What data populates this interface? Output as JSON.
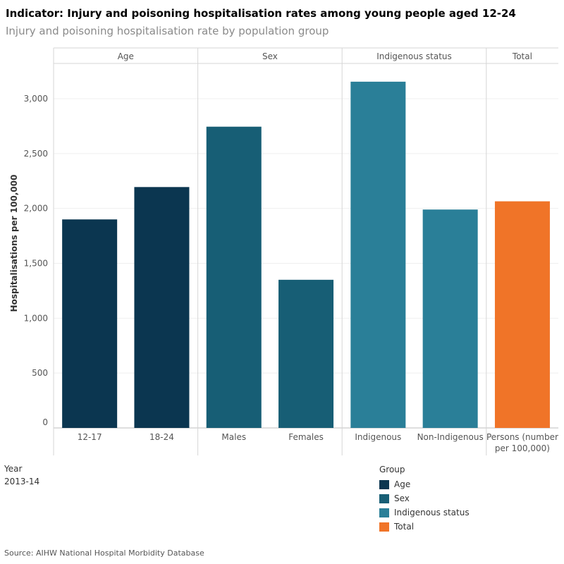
{
  "header": {
    "title": "Indicator: Injury and poisoning hospitalisation rates among young people aged 12-24",
    "subtitle": "Injury and poisoning hospitalisation rate by population group"
  },
  "filters": {
    "year_label": "Year",
    "year_value": "2013-14"
  },
  "legend": {
    "title": "Group",
    "items": [
      {
        "label": "Age",
        "color": "#0b3650"
      },
      {
        "label": "Sex",
        "color": "#175e75"
      },
      {
        "label": "Indigenous status",
        "color": "#2a7f98"
      },
      {
        "label": "Total",
        "color": "#f07428"
      }
    ]
  },
  "source": "Source: AIHW National Hospital Morbidity Database",
  "chart_data": {
    "type": "bar",
    "ylabel": "Hospitalisations per 100,000",
    "ylim": [
      0,
      3250
    ],
    "yticks": [
      0,
      500,
      1000,
      1500,
      2000,
      2500,
      3000
    ],
    "ytick_labels": [
      "0",
      "500",
      "1,000",
      "1,500",
      "2,000",
      "2,500",
      "3,000"
    ],
    "grid": true,
    "panels": [
      {
        "label": "Age",
        "group": "Age",
        "categories": [
          "12-17",
          "18-24"
        ],
        "values": [
          1900,
          2195
        ]
      },
      {
        "label": "Sex",
        "group": "Sex",
        "categories": [
          "Males",
          "Females"
        ],
        "values": [
          2745,
          1350
        ]
      },
      {
        "label": "Indigenous status",
        "group": "Indigenous status",
        "categories": [
          "Indigenous",
          "Non-Indigenous"
        ],
        "values": [
          3155,
          1990
        ]
      },
      {
        "label": "Total",
        "group": "Total",
        "categories": [
          "Persons (number per 100,000)"
        ],
        "category_lines": [
          "Persons (number",
          "per 100,000)"
        ],
        "values": [
          2065
        ]
      }
    ]
  }
}
